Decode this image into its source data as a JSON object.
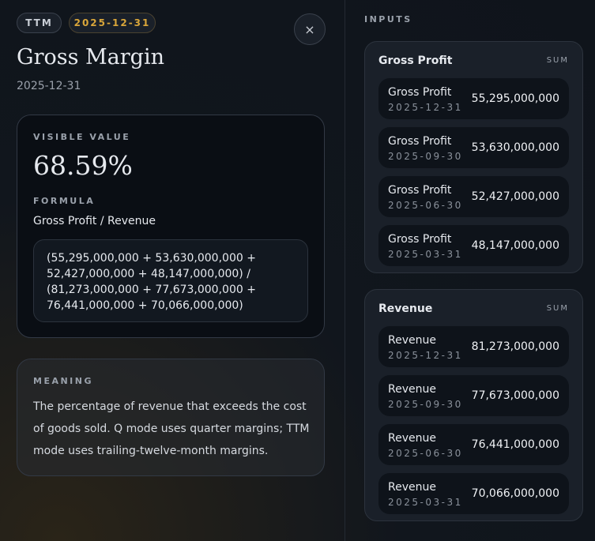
{
  "header": {
    "badges": [
      "TTM",
      "2025-12-31"
    ],
    "close": "×",
    "title": "Gross Margin",
    "date": "2025-12-31"
  },
  "value_card": {
    "label": "VISIBLE VALUE",
    "value": "68.59%",
    "formula_label": "FORMULA",
    "formula": "Gross Profit / Revenue",
    "expression": "(55,295,000,000 + 53,630,000,000 + 52,427,000,000 + 48,147,000,000) / (81,273,000,000 + 77,673,000,000 + 76,441,000,000 + 70,066,000,000)"
  },
  "meaning": {
    "label": "MEANING",
    "text": "The percentage of revenue that exceeds the cost of goods sold. Q mode uses quarter margins; TTM mode uses trailing-twelve-month margins."
  },
  "inputs": {
    "label": "INPUTS",
    "groups": [
      {
        "title": "Gross Profit",
        "agg": "SUM",
        "rows": [
          {
            "name": "Gross Profit",
            "date": "2025-12-31",
            "value": "55,295,000,000"
          },
          {
            "name": "Gross Profit",
            "date": "2025-09-30",
            "value": "53,630,000,000"
          },
          {
            "name": "Gross Profit",
            "date": "2025-06-30",
            "value": "52,427,000,000"
          },
          {
            "name": "Gross Profit",
            "date": "2025-03-31",
            "value": "48,147,000,000"
          }
        ]
      },
      {
        "title": "Revenue",
        "agg": "SUM",
        "rows": [
          {
            "name": "Revenue",
            "date": "2025-12-31",
            "value": "81,273,000,000"
          },
          {
            "name": "Revenue",
            "date": "2025-09-30",
            "value": "77,673,000,000"
          },
          {
            "name": "Revenue",
            "date": "2025-06-30",
            "value": "76,441,000,000"
          },
          {
            "name": "Revenue",
            "date": "2025-03-31",
            "value": "70,066,000,000"
          }
        ]
      }
    ]
  }
}
